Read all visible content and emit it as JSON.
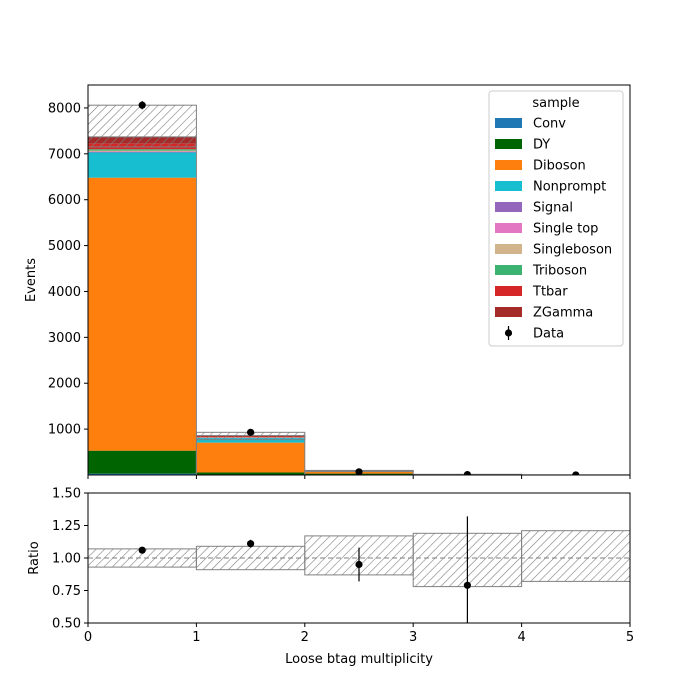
{
  "chart_data": {
    "type": "bar",
    "subtype": "stacked-histogram-with-ratio",
    "x_bins": [
      [
        0,
        1
      ],
      [
        1,
        2
      ],
      [
        2,
        3
      ],
      [
        3,
        4
      ],
      [
        4,
        5
      ]
    ],
    "xlabel": "Loose btag multiplicity",
    "x_ticks": [
      "0",
      "1",
      "2",
      "3",
      "4",
      "5"
    ],
    "xlim": [
      0,
      5
    ],
    "main_panel": {
      "ylabel": "Events",
      "ylim": [
        0,
        8500
      ],
      "y_ticks": [
        "1000",
        "2000",
        "3000",
        "4000",
        "5000",
        "6000",
        "7000",
        "8000"
      ],
      "series": [
        {
          "name": "Conv",
          "color": "#1f77b4",
          "values": [
            30,
            5,
            1,
            0,
            0
          ]
        },
        {
          "name": "DY",
          "color": "#006400",
          "values": [
            500,
            50,
            30,
            3,
            0
          ]
        },
        {
          "name": "Diboson",
          "color": "#ff7f0e",
          "values": [
            5950,
            650,
            40,
            5,
            1
          ]
        },
        {
          "name": "Nonprompt",
          "color": "#17becf",
          "values": [
            550,
            100,
            10,
            2,
            0
          ]
        },
        {
          "name": "Signal",
          "color": "#9467bd",
          "values": [
            10,
            2,
            0,
            0,
            0
          ]
        },
        {
          "name": "Single top",
          "color": "#e377c2",
          "values": [
            10,
            3,
            1,
            0,
            0
          ]
        },
        {
          "name": "Singleboson",
          "color": "#d2b48c",
          "values": [
            20,
            5,
            2,
            0,
            0
          ]
        },
        {
          "name": "Triboson",
          "color": "#3cb371",
          "values": [
            30,
            5,
            1,
            0,
            0
          ]
        },
        {
          "name": "Ttbar",
          "color": "#d62728",
          "values": [
            120,
            20,
            5,
            1,
            0
          ]
        },
        {
          "name": "ZGamma",
          "color": "#a52a2a",
          "values": [
            150,
            20,
            5,
            1,
            0
          ]
        }
      ],
      "uncertainty_band": {
        "lower": [
          7150,
          770,
          75,
          10,
          1
        ],
        "upper": [
          8060,
          930,
          100,
          14,
          2
        ]
      },
      "data": {
        "name": "Data",
        "x": [
          0.5,
          1.5,
          2.5,
          3.5,
          4.5
        ],
        "y": [
          8060,
          930,
          70,
          9,
          1
        ],
        "yerr": [
          90,
          30,
          8,
          3,
          1
        ]
      },
      "legend": {
        "title": "sample",
        "placement": "top-right",
        "entries": [
          "Conv",
          "DY",
          "Diboson",
          "Nonprompt",
          "Signal",
          "Single top",
          "Singleboson",
          "Triboson",
          "Ttbar",
          "ZGamma",
          "Data"
        ]
      }
    },
    "ratio_panel": {
      "ylabel": "Ratio",
      "ylim": [
        0.5,
        1.5
      ],
      "y_ticks": [
        "0.50",
        "0.75",
        "1.00",
        "1.25",
        "1.50"
      ],
      "reference_line": 1.0,
      "band": {
        "lower": [
          0.93,
          0.91,
          0.87,
          0.78,
          0.82
        ],
        "upper": [
          1.07,
          1.09,
          1.17,
          1.19,
          1.21
        ]
      },
      "points": {
        "x": [
          0.5,
          1.5,
          2.5,
          3.5
        ],
        "y": [
          1.06,
          1.11,
          0.95,
          0.79
        ],
        "yerr": [
          0.015,
          0.03,
          0.13,
          0.53
        ]
      }
    }
  }
}
